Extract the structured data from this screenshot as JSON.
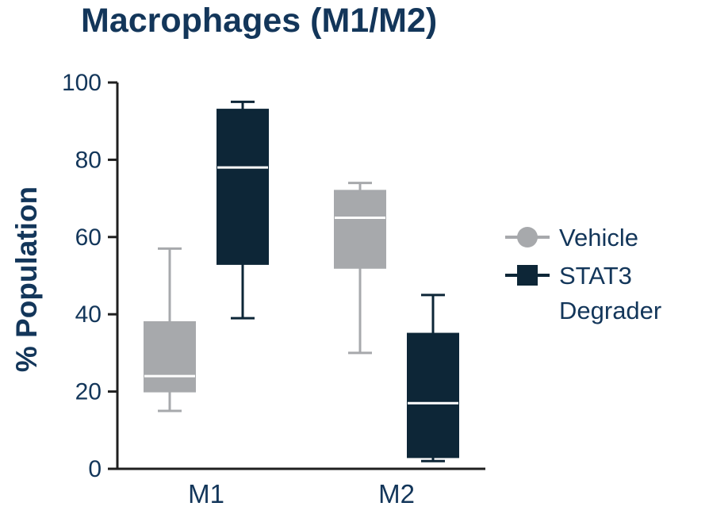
{
  "chart_data": {
    "type": "boxplot",
    "title": "Macrophages (M1/M2)",
    "ylabel": "% Population",
    "xlabel": "",
    "ylim": [
      0,
      100
    ],
    "yticks": [
      0,
      20,
      40,
      60,
      80,
      100
    ],
    "categories": [
      "M1",
      "M2"
    ],
    "series": [
      {
        "name": "Vehicle",
        "color": "#a7a9ac",
        "marker": "circle",
        "boxes": [
          {
            "category": "M1",
            "whisker_low": 15,
            "q1": 20,
            "median": 24,
            "q3": 38,
            "whisker_high": 57
          },
          {
            "category": "M2",
            "whisker_low": 30,
            "q1": 52,
            "median": 65,
            "q3": 72,
            "whisker_high": 74
          }
        ]
      },
      {
        "name": "STAT3 Degrader",
        "color": "#0d2637",
        "marker": "square",
        "boxes": [
          {
            "category": "M1",
            "whisker_low": 39,
            "q1": 53,
            "median": 78,
            "q3": 93,
            "whisker_high": 95
          },
          {
            "category": "M2",
            "whisker_low": 2,
            "q1": 3,
            "median": 17,
            "q3": 35,
            "whisker_high": 45
          }
        ]
      }
    ],
    "legend": {
      "position": "right",
      "entries": [
        {
          "label": "Vehicle",
          "lines": [
            "Vehicle"
          ]
        },
        {
          "label": "STAT3 Degrader",
          "lines": [
            "STAT3",
            "Degrader"
          ]
        }
      ]
    },
    "grid": false,
    "text_color": "#13365a",
    "axis_color": "#1f1f1f",
    "median_line_color": "#ffffff"
  }
}
